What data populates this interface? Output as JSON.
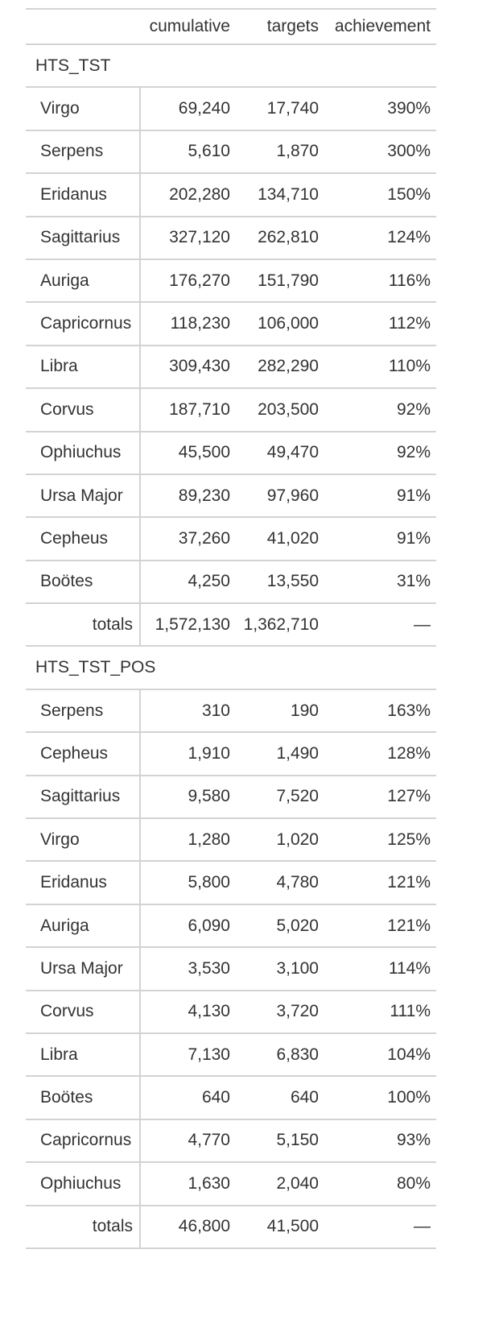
{
  "columns": {
    "label": "",
    "cumulative": "cumulative",
    "targets": "targets",
    "achievement": "achievement"
  },
  "groups": [
    {
      "name": "HTS_TST",
      "rows": [
        {
          "label": "Virgo",
          "cumulative": "69,240",
          "targets": "17,740",
          "achievement": "390%"
        },
        {
          "label": "Serpens",
          "cumulative": "5,610",
          "targets": "1,870",
          "achievement": "300%"
        },
        {
          "label": "Eridanus",
          "cumulative": "202,280",
          "targets": "134,710",
          "achievement": "150%"
        },
        {
          "label": "Sagittarius",
          "cumulative": "327,120",
          "targets": "262,810",
          "achievement": "124%"
        },
        {
          "label": "Auriga",
          "cumulative": "176,270",
          "targets": "151,790",
          "achievement": "116%"
        },
        {
          "label": "Capricornus",
          "cumulative": "118,230",
          "targets": "106,000",
          "achievement": "112%"
        },
        {
          "label": "Libra",
          "cumulative": "309,430",
          "targets": "282,290",
          "achievement": "110%"
        },
        {
          "label": "Corvus",
          "cumulative": "187,710",
          "targets": "203,500",
          "achievement": "92%"
        },
        {
          "label": "Ophiuchus",
          "cumulative": "45,500",
          "targets": "49,470",
          "achievement": "92%"
        },
        {
          "label": "Ursa Major",
          "cumulative": "89,230",
          "targets": "97,960",
          "achievement": "91%"
        },
        {
          "label": "Cepheus",
          "cumulative": "37,260",
          "targets": "41,020",
          "achievement": "91%"
        },
        {
          "label": "Boötes",
          "cumulative": "4,250",
          "targets": "13,550",
          "achievement": "31%"
        }
      ],
      "totals": {
        "label": "totals",
        "cumulative": "1,572,130",
        "targets": "1,362,710",
        "achievement": "—"
      }
    },
    {
      "name": "HTS_TST_POS",
      "rows": [
        {
          "label": "Serpens",
          "cumulative": "310",
          "targets": "190",
          "achievement": "163%"
        },
        {
          "label": "Cepheus",
          "cumulative": "1,910",
          "targets": "1,490",
          "achievement": "128%"
        },
        {
          "label": "Sagittarius",
          "cumulative": "9,580",
          "targets": "7,520",
          "achievement": "127%"
        },
        {
          "label": "Virgo",
          "cumulative": "1,280",
          "targets": "1,020",
          "achievement": "125%"
        },
        {
          "label": "Eridanus",
          "cumulative": "5,800",
          "targets": "4,780",
          "achievement": "121%"
        },
        {
          "label": "Auriga",
          "cumulative": "6,090",
          "targets": "5,020",
          "achievement": "121%"
        },
        {
          "label": "Ursa Major",
          "cumulative": "3,530",
          "targets": "3,100",
          "achievement": "114%"
        },
        {
          "label": "Corvus",
          "cumulative": "4,130",
          "targets": "3,720",
          "achievement": "111%"
        },
        {
          "label": "Libra",
          "cumulative": "7,130",
          "targets": "6,830",
          "achievement": "104%"
        },
        {
          "label": "Boötes",
          "cumulative": "640",
          "targets": "640",
          "achievement": "100%"
        },
        {
          "label": "Capricornus",
          "cumulative": "4,770",
          "targets": "5,150",
          "achievement": "93%"
        },
        {
          "label": "Ophiuchus",
          "cumulative": "1,630",
          "targets": "2,040",
          "achievement": "80%"
        }
      ],
      "totals": {
        "label": "totals",
        "cumulative": "46,800",
        "targets": "41,500",
        "achievement": "—"
      }
    }
  ]
}
